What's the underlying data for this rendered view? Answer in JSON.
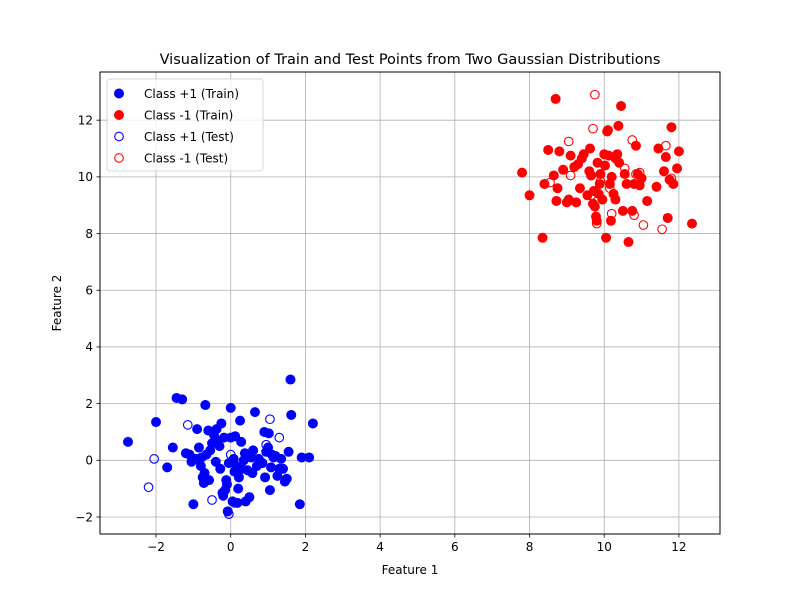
{
  "chart_data": {
    "type": "scatter",
    "title": "Visualization of Train and Test Points from Two Gaussian Distributions",
    "xlabel": "Feature 1",
    "ylabel": "Feature 2",
    "xlim": [
      -3.5,
      13.1
    ],
    "ylim": [
      -2.6,
      13.7
    ],
    "xticks": [
      -2,
      0,
      2,
      4,
      6,
      8,
      10,
      12
    ],
    "yticks": [
      -2,
      0,
      2,
      4,
      6,
      8,
      10,
      12
    ],
    "grid": true,
    "legend_position": "top-left",
    "series": [
      {
        "name": "Class +1 (Train)",
        "color": "#0000ff",
        "marker": "filled-circle",
        "points": [
          [
            -2.75,
            0.65
          ],
          [
            -2.0,
            1.35
          ],
          [
            -1.7,
            -0.25
          ],
          [
            -1.55,
            0.45
          ],
          [
            -1.45,
            2.2
          ],
          [
            -1.3,
            2.15
          ],
          [
            -1.2,
            0.25
          ],
          [
            -1.1,
            0.2
          ],
          [
            -1.05,
            -0.05
          ],
          [
            -1.0,
            -1.55
          ],
          [
            -0.95,
            0.05
          ],
          [
            -0.9,
            1.1
          ],
          [
            -0.85,
            0.45
          ],
          [
            -0.8,
            -0.2
          ],
          [
            -0.78,
            0.1
          ],
          [
            -0.75,
            -0.6
          ],
          [
            -0.72,
            -0.8
          ],
          [
            -0.7,
            -0.45
          ],
          [
            -0.68,
            1.95
          ],
          [
            -0.65,
            0.2
          ],
          [
            -0.6,
            1.05
          ],
          [
            -0.58,
            -0.7
          ],
          [
            -0.55,
            0.35
          ],
          [
            -0.5,
            0.6
          ],
          [
            -0.45,
            0.9
          ],
          [
            -0.4,
            -0.05
          ],
          [
            -0.38,
            1.1
          ],
          [
            -0.35,
            0.7
          ],
          [
            -0.3,
            0.5
          ],
          [
            -0.28,
            -0.3
          ],
          [
            -0.25,
            1.3
          ],
          [
            -0.22,
            -1.15
          ],
          [
            -0.2,
            -1.25
          ],
          [
            -0.18,
            0.8
          ],
          [
            -0.15,
            -1.05
          ],
          [
            -0.12,
            -0.7
          ],
          [
            -0.1,
            -0.85
          ],
          [
            -0.08,
            -1.8
          ],
          [
            -0.05,
            -0.1
          ],
          [
            0.0,
            1.85
          ],
          [
            0.0,
            0.8
          ],
          [
            0.05,
            -1.45
          ],
          [
            0.08,
            0.05
          ],
          [
            0.1,
            -0.4
          ],
          [
            0.12,
            0.85
          ],
          [
            0.15,
            -0.2
          ],
          [
            0.18,
            -1.5
          ],
          [
            0.2,
            -1.0
          ],
          [
            0.22,
            -0.6
          ],
          [
            0.25,
            1.4
          ],
          [
            0.28,
            0.65
          ],
          [
            0.3,
            -0.3
          ],
          [
            0.35,
            0.0
          ],
          [
            0.38,
            0.25
          ],
          [
            0.4,
            -1.45
          ],
          [
            0.45,
            -0.35
          ],
          [
            0.5,
            -1.3
          ],
          [
            0.55,
            0.1
          ],
          [
            0.58,
            -0.45
          ],
          [
            0.6,
            0.35
          ],
          [
            0.65,
            1.7
          ],
          [
            0.7,
            -0.2
          ],
          [
            0.75,
            0.05
          ],
          [
            0.8,
            -0.05
          ],
          [
            0.85,
            -0.1
          ],
          [
            0.9,
            1.0
          ],
          [
            0.92,
            -0.6
          ],
          [
            0.95,
            0.3
          ],
          [
            1.0,
            0.45
          ],
          [
            1.02,
            0.95
          ],
          [
            1.05,
            -1.05
          ],
          [
            1.08,
            -0.25
          ],
          [
            1.1,
            0.2
          ],
          [
            1.15,
            0.1
          ],
          [
            1.2,
            0.15
          ],
          [
            1.25,
            -0.55
          ],
          [
            1.3,
            -0.3
          ],
          [
            1.35,
            0.05
          ],
          [
            1.4,
            -0.3
          ],
          [
            1.45,
            -0.75
          ],
          [
            1.5,
            -0.65
          ],
          [
            1.55,
            0.3
          ],
          [
            1.6,
            2.85
          ],
          [
            1.62,
            1.6
          ],
          [
            1.85,
            -1.55
          ],
          [
            1.9,
            0.1
          ],
          [
            2.1,
            0.1
          ],
          [
            2.2,
            1.3
          ]
        ]
      },
      {
        "name": "Class -1 (Train)",
        "color": "#ff0000",
        "marker": "filled-circle",
        "points": [
          [
            7.8,
            10.15
          ],
          [
            8.0,
            9.35
          ],
          [
            8.35,
            7.85
          ],
          [
            8.4,
            9.75
          ],
          [
            8.5,
            10.95
          ],
          [
            8.65,
            10.05
          ],
          [
            8.7,
            12.75
          ],
          [
            8.72,
            9.15
          ],
          [
            8.75,
            9.6
          ],
          [
            8.8,
            10.9
          ],
          [
            8.9,
            10.25
          ],
          [
            9.0,
            9.1
          ],
          [
            9.05,
            9.2
          ],
          [
            9.1,
            10.75
          ],
          [
            9.2,
            10.35
          ],
          [
            9.25,
            9.1
          ],
          [
            9.3,
            10.45
          ],
          [
            9.35,
            9.6
          ],
          [
            9.4,
            10.65
          ],
          [
            9.45,
            10.8
          ],
          [
            9.55,
            9.35
          ],
          [
            9.6,
            10.2
          ],
          [
            9.62,
            11.0
          ],
          [
            9.65,
            10.05
          ],
          [
            9.7,
            9.05
          ],
          [
            9.72,
            9.5
          ],
          [
            9.75,
            8.95
          ],
          [
            9.78,
            8.6
          ],
          [
            9.8,
            8.45
          ],
          [
            9.82,
            10.5
          ],
          [
            9.85,
            9.4
          ],
          [
            9.88,
            9.75
          ],
          [
            9.9,
            10.1
          ],
          [
            9.95,
            9.2
          ],
          [
            10.0,
            10.8
          ],
          [
            10.02,
            10.4
          ],
          [
            10.05,
            7.85
          ],
          [
            10.08,
            11.6
          ],
          [
            10.1,
            11.65
          ],
          [
            10.12,
            10.75
          ],
          [
            10.15,
            9.75
          ],
          [
            10.18,
            8.45
          ],
          [
            10.2,
            10.0
          ],
          [
            10.25,
            9.4
          ],
          [
            10.28,
            10.7
          ],
          [
            10.3,
            9.2
          ],
          [
            10.35,
            10.8
          ],
          [
            10.38,
            11.8
          ],
          [
            10.4,
            10.5
          ],
          [
            10.45,
            12.5
          ],
          [
            10.5,
            8.8
          ],
          [
            10.55,
            10.1
          ],
          [
            10.6,
            9.75
          ],
          [
            10.65,
            7.7
          ],
          [
            10.75,
            8.8
          ],
          [
            10.8,
            9.75
          ],
          [
            10.85,
            11.1
          ],
          [
            10.9,
            10.1
          ],
          [
            10.95,
            9.7
          ],
          [
            11.0,
            9.95
          ],
          [
            11.15,
            9.15
          ],
          [
            11.4,
            9.65
          ],
          [
            11.45,
            11.0
          ],
          [
            11.6,
            10.2
          ],
          [
            11.65,
            10.7
          ],
          [
            11.7,
            8.55
          ],
          [
            11.75,
            9.9
          ],
          [
            11.8,
            11.75
          ],
          [
            11.85,
            9.75
          ],
          [
            11.95,
            10.3
          ],
          [
            12.0,
            10.9
          ],
          [
            12.35,
            8.35
          ]
        ]
      },
      {
        "name": "Class +1 (Test)",
        "color": "#0000ff",
        "marker": "hollow-circle",
        "points": [
          [
            -2.2,
            -0.95
          ],
          [
            -2.05,
            0.05
          ],
          [
            -1.15,
            1.25
          ],
          [
            -0.5,
            -1.4
          ],
          [
            -0.05,
            -1.9
          ],
          [
            0.0,
            0.2
          ],
          [
            0.1,
            -1.5
          ],
          [
            0.6,
            0.35
          ],
          [
            0.95,
            0.55
          ],
          [
            1.05,
            1.45
          ],
          [
            1.3,
            0.8
          ]
        ]
      },
      {
        "name": "Class -1 (Test)",
        "color": "#ff0000",
        "marker": "hollow-circle",
        "points": [
          [
            8.55,
            9.8
          ],
          [
            9.05,
            11.25
          ],
          [
            9.1,
            10.05
          ],
          [
            9.65,
            9.35
          ],
          [
            9.7,
            11.7
          ],
          [
            9.75,
            12.9
          ],
          [
            9.8,
            8.35
          ],
          [
            9.9,
            9.85
          ],
          [
            10.15,
            9.6
          ],
          [
            10.2,
            8.7
          ],
          [
            10.3,
            10.65
          ],
          [
            10.55,
            10.3
          ],
          [
            10.75,
            11.3
          ],
          [
            10.8,
            8.65
          ],
          [
            10.85,
            10.1
          ],
          [
            10.95,
            10.15
          ],
          [
            11.05,
            8.3
          ],
          [
            11.55,
            8.15
          ],
          [
            11.65,
            11.1
          ],
          [
            11.8,
            9.95
          ]
        ]
      }
    ]
  }
}
